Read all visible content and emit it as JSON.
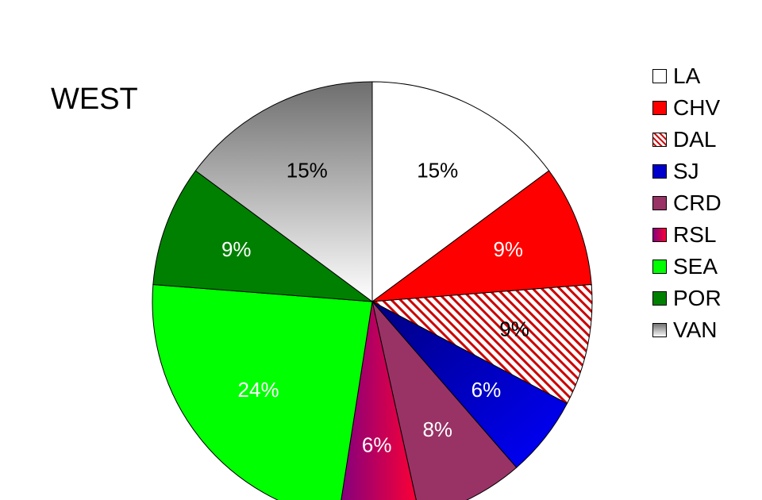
{
  "chart_data": {
    "type": "pie",
    "title": "WEST",
    "start_angle_deg": 0,
    "direction": "clockwise",
    "legend_placement": "right",
    "slices": [
      {
        "label": "LA",
        "value": 15,
        "display": "15%",
        "fill": "#ffffff",
        "pattern": "solid",
        "label_color": "#000000"
      },
      {
        "label": "CHV",
        "value": 9,
        "display": "9%",
        "fill": "#ff0000",
        "pattern": "solid",
        "label_color": "#ffffff"
      },
      {
        "label": "DAL",
        "value": 9,
        "display": "9%",
        "fill": "#cc0000",
        "pattern": "diagonal-stripes",
        "label_color": "#000000"
      },
      {
        "label": "SJ",
        "value": 6,
        "display": "6%",
        "fill": "#0000ff",
        "pattern": "gradient-dark",
        "label_color": "#ffffff"
      },
      {
        "label": "CRD",
        "value": 8,
        "display": "8%",
        "fill": "#993366",
        "pattern": "solid",
        "label_color": "#ffffff"
      },
      {
        "label": "RSL",
        "value": 6,
        "display": "6%",
        "fill": "#ff0033",
        "pattern": "gradient-purple",
        "label_color": "#ffffff"
      },
      {
        "label": "SEA",
        "value": 24,
        "display": "24%",
        "fill": "#00ff00",
        "pattern": "solid",
        "label_color": "#ffffff"
      },
      {
        "label": "POR",
        "value": 9,
        "display": "9%",
        "fill": "#008000",
        "pattern": "solid",
        "label_color": "#ffffff"
      },
      {
        "label": "VAN",
        "value": 15,
        "display": "15%",
        "fill": "#808080",
        "pattern": "gradient-gray",
        "label_color": "#000000"
      }
    ]
  }
}
